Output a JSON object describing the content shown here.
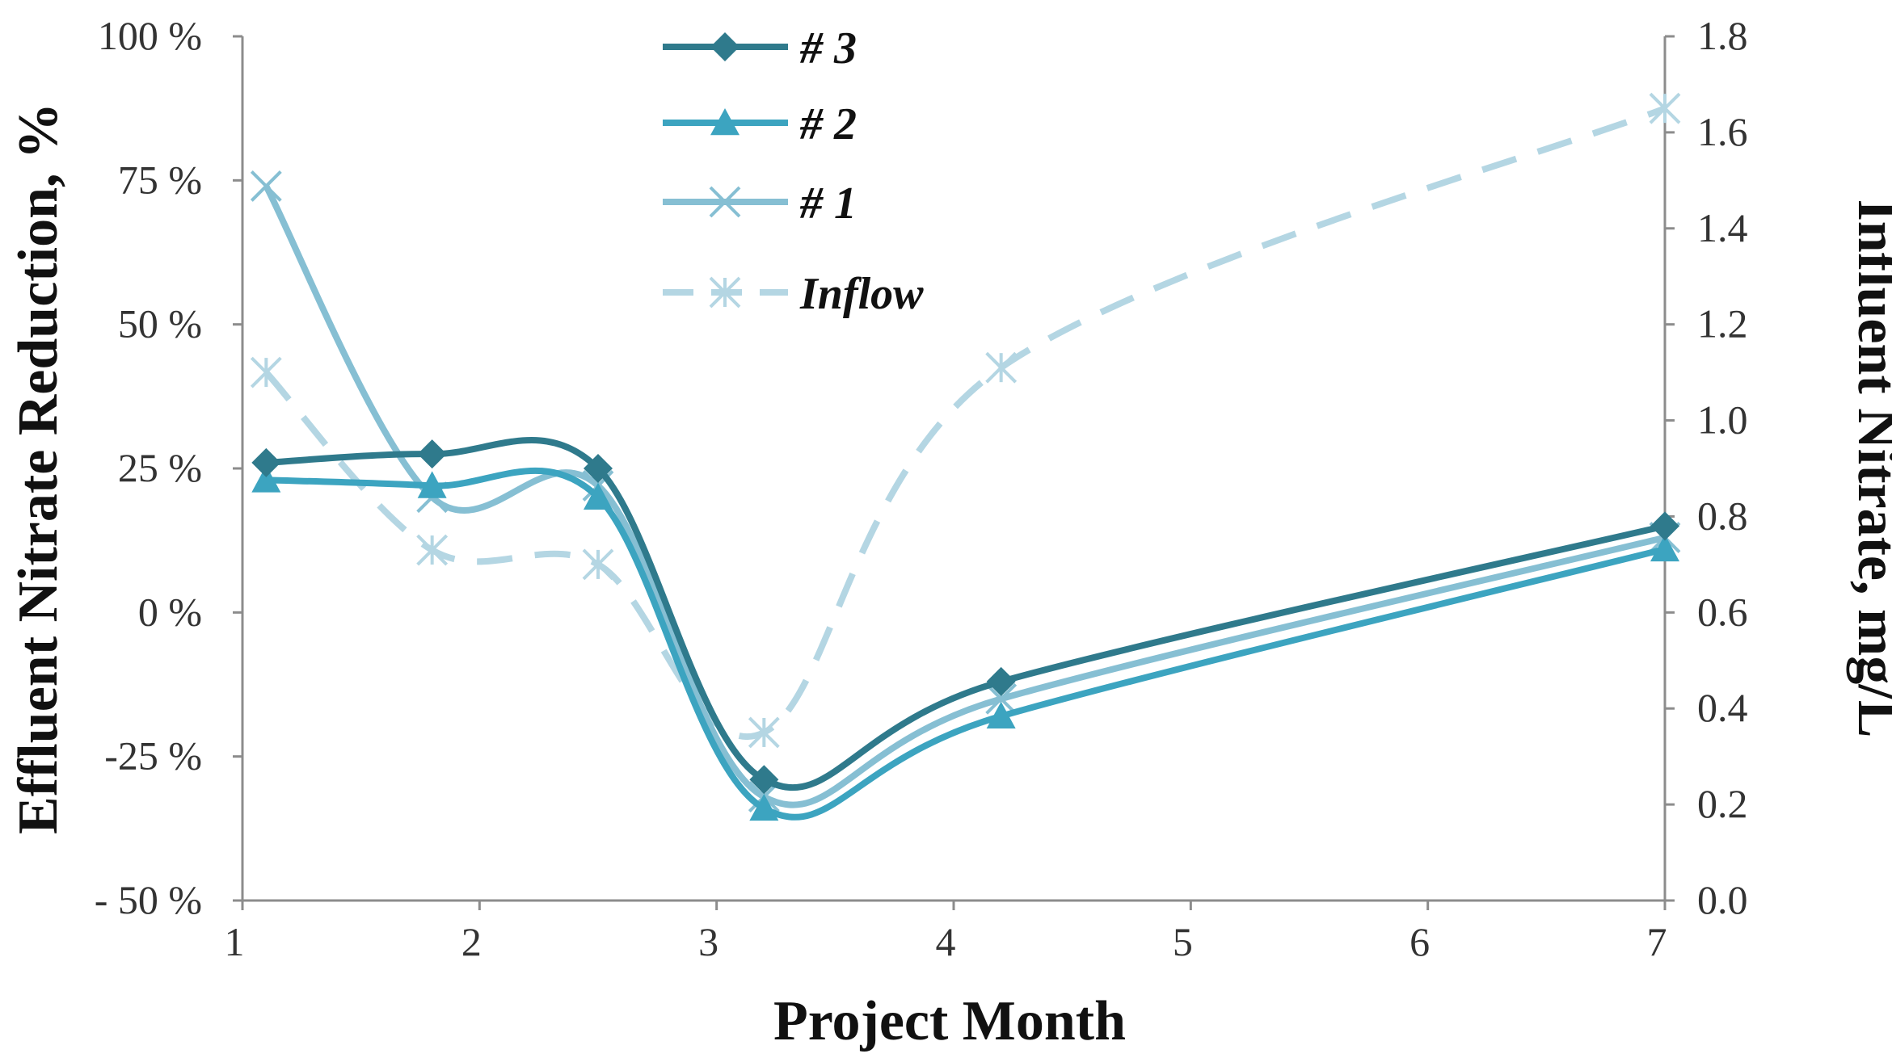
{
  "chart_data": {
    "type": "line",
    "xlabel": "Project Month",
    "ylabel_left": "Effluent Nitrate Reduction, %",
    "ylabel_right": "Influent Nitrate, mg/L",
    "xlim": [
      1,
      7
    ],
    "ylim_left": [
      -50,
      100
    ],
    "ylim_right": [
      0.0,
      1.8
    ],
    "x_ticks": [
      {
        "value": 1,
        "label": "1"
      },
      {
        "value": 2,
        "label": "2"
      },
      {
        "value": 3,
        "label": "3"
      },
      {
        "value": 4,
        "label": "4"
      },
      {
        "value": 5,
        "label": "5"
      },
      {
        "value": 6,
        "label": "6"
      },
      {
        "value": 7,
        "label": "7"
      }
    ],
    "y_left_ticks": [
      {
        "value": 100,
        "label": "100 %"
      },
      {
        "value": 75,
        "label": "75 %"
      },
      {
        "value": 50,
        "label": "50 %"
      },
      {
        "value": 25,
        "label": "25 %"
      },
      {
        "value": 0,
        "label": "0 %"
      },
      {
        "value": -25,
        "label": "-25 %"
      },
      {
        "value": -50,
        "label": "- 50 %"
      }
    ],
    "y_right_ticks": [
      {
        "value": 1.8,
        "label": "1.8"
      },
      {
        "value": 1.6,
        "label": "1.6"
      },
      {
        "value": 1.4,
        "label": "1.4"
      },
      {
        "value": 1.2,
        "label": "1.2"
      },
      {
        "value": 1.0,
        "label": "1.0"
      },
      {
        "value": 0.8,
        "label": "0.8"
      },
      {
        "value": 0.6,
        "label": "0.6"
      },
      {
        "value": 0.4,
        "label": "0.4"
      },
      {
        "value": 0.2,
        "label": "0.2"
      },
      {
        "value": 0.0,
        "label": "0.0"
      }
    ],
    "series": [
      {
        "name": "# 3",
        "axis": "left",
        "marker": "diamond",
        "dash": false,
        "color": "#2f7a8c",
        "x": [
          1.1,
          1.8,
          2.5,
          3.2,
          4.2,
          7.0
        ],
        "values": [
          26,
          27.5,
          25,
          -29,
          -12,
          15
        ]
      },
      {
        "name": "# 2",
        "axis": "left",
        "marker": "triangle",
        "dash": false,
        "color": "#3ca4c0",
        "x": [
          1.1,
          1.8,
          2.5,
          3.2,
          4.2,
          7.0
        ],
        "values": [
          23,
          22,
          20,
          -34,
          -18,
          11
        ]
      },
      {
        "name": "# 1",
        "axis": "left",
        "marker": "x",
        "dash": false,
        "color": "#86bfd3",
        "x": [
          1.1,
          1.8,
          2.5,
          3.2,
          4.2,
          7.0
        ],
        "values": [
          74,
          20,
          22,
          -32,
          -15,
          13
        ]
      },
      {
        "name": "Inflow",
        "axis": "right",
        "marker": "star",
        "dash": true,
        "color": "#b4d6e3",
        "x": [
          1.1,
          1.8,
          2.5,
          3.2,
          4.2,
          7.0
        ],
        "values": [
          1.1,
          0.73,
          0.7,
          0.35,
          1.11,
          1.65
        ]
      }
    ],
    "legend_position": "top-center"
  }
}
